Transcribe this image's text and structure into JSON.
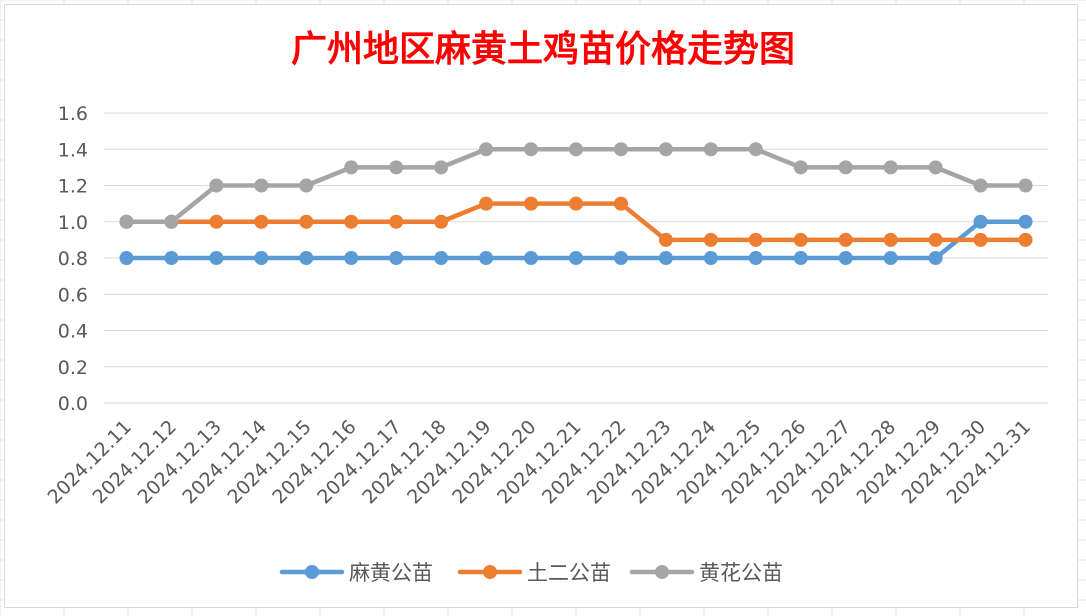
{
  "chart_data": {
    "type": "line",
    "title": "广州地区麻黄土鸡苗价格走势图",
    "title_color": "#ff0000",
    "xlabel": "",
    "ylabel": "",
    "ylim": [
      0,
      1.6
    ],
    "y_ticks": [
      "0.0",
      "0.2",
      "0.4",
      "0.6",
      "0.8",
      "1.0",
      "1.2",
      "1.4",
      "1.6"
    ],
    "grid": true,
    "grid_color": "#d9d9d9",
    "legend_position": "bottom",
    "categories": [
      "2024.12.11",
      "2024.12.12",
      "2024.12.13",
      "2024.12.14",
      "2024.12.15",
      "2024.12.16",
      "2024.12.17",
      "2024.12.18",
      "2024.12.19",
      "2024.12.20",
      "2024.12.21",
      "2024.12.22",
      "2024.12.23",
      "2024.12.24",
      "2024.12.25",
      "2024.12.26",
      "2024.12.27",
      "2024.12.28",
      "2024.12.29",
      "2024.12.30",
      "2024.12.31"
    ],
    "series": [
      {
        "name": "麻黄公苗",
        "color": "#5b9bd5",
        "values": [
          0.8,
          0.8,
          0.8,
          0.8,
          0.8,
          0.8,
          0.8,
          0.8,
          0.8,
          0.8,
          0.8,
          0.8,
          0.8,
          0.8,
          0.8,
          0.8,
          0.8,
          0.8,
          0.8,
          1.0,
          1.0
        ]
      },
      {
        "name": "土二公苗",
        "color": "#ed7d31",
        "values": [
          1.0,
          1.0,
          1.0,
          1.0,
          1.0,
          1.0,
          1.0,
          1.0,
          1.1,
          1.1,
          1.1,
          1.1,
          0.9,
          0.9,
          0.9,
          0.9,
          0.9,
          0.9,
          0.9,
          0.9,
          0.9
        ]
      },
      {
        "name": "黄花公苗",
        "color": "#a5a5a5",
        "values": [
          1.0,
          1.0,
          1.2,
          1.2,
          1.2,
          1.3,
          1.3,
          1.3,
          1.4,
          1.4,
          1.4,
          1.4,
          1.4,
          1.4,
          1.4,
          1.3,
          1.3,
          1.3,
          1.3,
          1.2,
          1.2
        ]
      }
    ]
  }
}
